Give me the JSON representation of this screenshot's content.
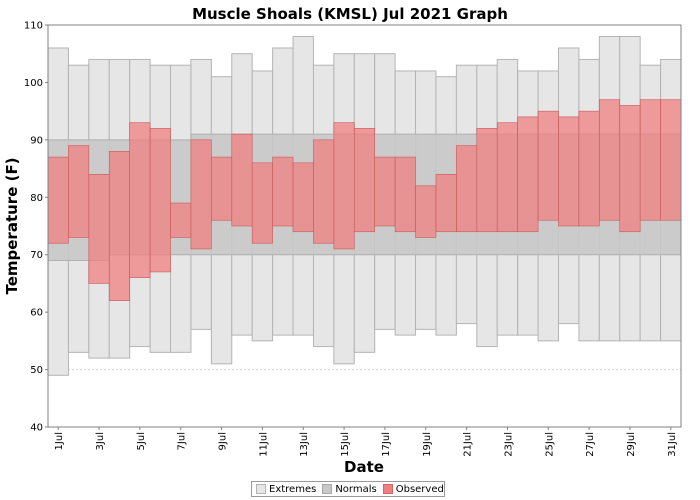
{
  "chart_data": {
    "type": "bar",
    "title": "Muscle Shoals (KMSL) Jul 2021 Graph",
    "xlabel": "Date",
    "ylabel": "Temperature (F)",
    "ylim": [
      40,
      110
    ],
    "yticks": [
      40,
      50,
      60,
      70,
      80,
      90,
      100,
      110
    ],
    "grid": true,
    "legend_position": "bottom",
    "colors": {
      "extremes": "#e6e6e6",
      "normals": "#c8c8c8",
      "observed": "#f08080",
      "observed_fill": "rgba(240,128,128,0.75)"
    },
    "x_tick_labels": [
      "1Jul",
      "3Jul",
      "5Jul",
      "7Jul",
      "9Jul",
      "11Jul",
      "13Jul",
      "15Jul",
      "17Jul",
      "19Jul",
      "21Jul",
      "23Jul",
      "25Jul",
      "27Jul",
      "29Jul",
      "31Jul"
    ],
    "days": [
      1,
      2,
      3,
      4,
      5,
      6,
      7,
      8,
      9,
      10,
      11,
      12,
      13,
      14,
      15,
      16,
      17,
      18,
      19,
      20,
      21,
      22,
      23,
      24,
      25,
      26,
      27,
      28,
      29,
      30,
      31
    ],
    "series": [
      {
        "name": "Extremes",
        "low": [
          49,
          53,
          52,
          52,
          54,
          53,
          53,
          57,
          51,
          56,
          55,
          56,
          56,
          54,
          51,
          53,
          57,
          56,
          57,
          56,
          58,
          54,
          56,
          56,
          55,
          58,
          55,
          55,
          55,
          55,
          55
        ],
        "high": [
          106,
          103,
          104,
          104,
          104,
          103,
          103,
          104,
          101,
          105,
          102,
          106,
          108,
          103,
          105,
          105,
          105,
          102,
          102,
          101,
          103,
          103,
          104,
          102,
          102,
          106,
          104,
          108,
          108,
          103,
          104
        ]
      },
      {
        "name": "Normals",
        "low": [
          69,
          69,
          69,
          70,
          70,
          70,
          70,
          70,
          70,
          70,
          70,
          70,
          70,
          70,
          70,
          70,
          70,
          70,
          70,
          70,
          70,
          70,
          70,
          70,
          70,
          70,
          70,
          70,
          70,
          70,
          70
        ],
        "high": [
          90,
          90,
          90,
          90,
          90,
          90,
          90,
          91,
          91,
          91,
          91,
          91,
          91,
          91,
          91,
          91,
          91,
          91,
          91,
          91,
          91,
          91,
          91,
          91,
          91,
          91,
          91,
          91,
          91,
          91,
          91
        ]
      },
      {
        "name": "Observed",
        "low": [
          72,
          73,
          65,
          62,
          66,
          67,
          73,
          71,
          76,
          75,
          72,
          75,
          74,
          72,
          71,
          74,
          75,
          74,
          73,
          74,
          74,
          74,
          74,
          74,
          76,
          75,
          75,
          76,
          74,
          76,
          76
        ],
        "high": [
          87,
          89,
          84,
          88,
          93,
          92,
          79,
          90,
          87,
          91,
          86,
          87,
          86,
          90,
          93,
          92,
          87,
          87,
          82,
          84,
          89,
          92,
          93,
          94,
          95,
          94,
          95,
          97,
          96,
          97,
          97
        ]
      }
    ]
  }
}
